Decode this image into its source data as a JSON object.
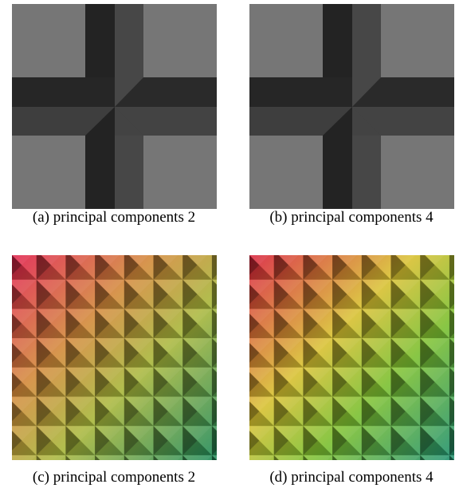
{
  "panels": [
    {
      "caption": "(a) principal components 2"
    },
    {
      "caption": "(b) principal components 4"
    },
    {
      "caption": "(c) principal components 2"
    },
    {
      "caption": "(d) principal components 4"
    }
  ]
}
